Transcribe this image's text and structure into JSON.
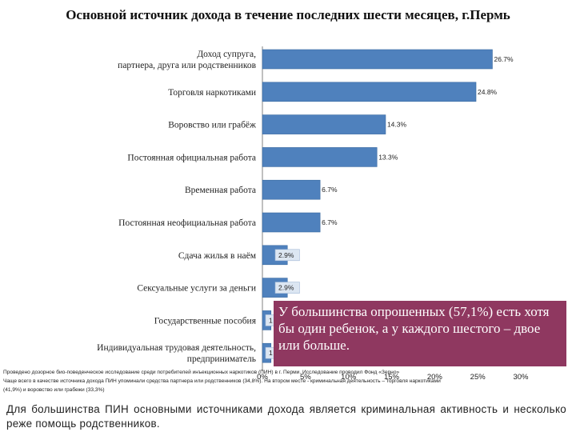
{
  "slide": {
    "title": "Основной источник  дохода в течение последних шести месяцев, г.Пермь",
    "callout": "У большинства опрошенных (57,1%) есть хотя бы один ребенок, а у каждого шестого – двое или больше.",
    "note_line1": "Проведено дозорное био-поведенческое исследование среди потребителей инъекционных наркотиков (ПИН) в г. Перми. Исследование проводил Фонд «Зерно»",
    "note_line2": "Чаще всего в качестве источника дохода ПИН упоминали средства партнера или родственников (34,8%). На втором месте - криминальная деятельность – торговля наркотиками",
    "note_line3": "(41,9%) и воровство или грабежи (33,3%)",
    "conclusion": "Для большинства ПИН основными источниками дохода является криминальная активность и несколько реже помощь родственников."
  },
  "chart_data": {
    "type": "bar",
    "orientation": "horizontal",
    "title": "Основной источник  дохода в течение последних шести месяцев, г.Пермь",
    "categories": [
      "Доход супруга, партнера, друга или родственников",
      "Торговля наркотиками",
      "Воровство или грабёж",
      "Постоянная официальная работа",
      "Временная работа",
      "Постоянная неофициальная работа",
      "Сдача жилья в наём",
      "Сексуальные услуги за деньги",
      "Государственные пособия",
      "Индивидуальная трудовая деятельность, предприниматель"
    ],
    "values": [
      26.7,
      24.8,
      14.3,
      13.3,
      6.7,
      6.7,
      2.9,
      2.9,
      1.0,
      1.0
    ],
    "value_labels": [
      "26.7%",
      "24.8%",
      "14.3%",
      "13.3%",
      "6.7%",
      "6.7%",
      "2.9%",
      "2.9%",
      "1",
      "1"
    ],
    "xticks": [
      "0%",
      "5%",
      "10%",
      "15%",
      "20%",
      "25%",
      "30%"
    ],
    "xlim": [
      0,
      30
    ],
    "bar_color": "#4f81bd",
    "label_bg": "#dce6f2"
  }
}
